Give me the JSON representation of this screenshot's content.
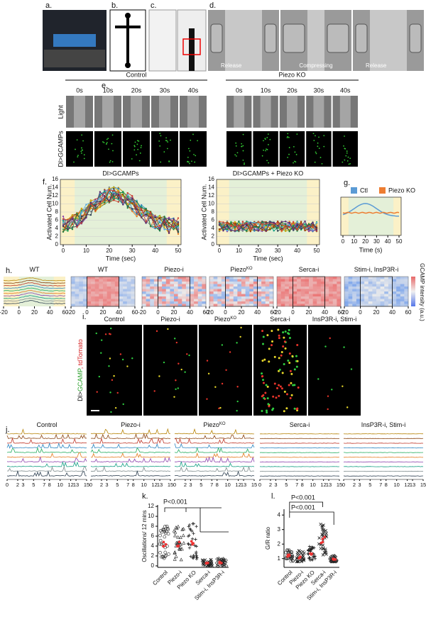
{
  "panels": {
    "a": {
      "label": "a."
    },
    "b": {
      "label": "b."
    },
    "c": {
      "label": "c."
    },
    "d": {
      "label": "d.",
      "frames": [
        "Release",
        "Compressing",
        "Release"
      ]
    },
    "e": {
      "label": "e.",
      "groups": [
        "Control",
        "Piezo KO"
      ],
      "times": [
        "0s",
        "10s",
        "20s",
        "30s",
        "40s"
      ],
      "rows": [
        "Light",
        "Dl>GCAMPs"
      ]
    },
    "f": {
      "label": "f.",
      "charts": [
        {
          "title": "Dl>GCAMPs",
          "ylabel": "Activated Cell Num.",
          "xlabel": "Time (sec)"
        },
        {
          "title": "Dl>GCAMPs + Piezo KO",
          "ylabel": "Activated Cell Num.",
          "xlabel": "Time (sec)"
        }
      ],
      "yticks": [
        0,
        2,
        4,
        6,
        8,
        10,
        12,
        14,
        16
      ],
      "xticks": [
        0,
        10,
        20,
        30,
        40,
        50
      ]
    },
    "g": {
      "label": "g.",
      "legend": [
        "Ctl",
        "Piezo KO"
      ],
      "xticks": [
        0,
        10,
        20,
        30,
        40,
        50
      ],
      "xlabel": "Time (s)"
    },
    "h": {
      "label": "h.",
      "titles": [
        [
          "WT"
        ],
        [
          "WT"
        ],
        [
          "Piezo-i"
        ],
        [
          "Piezo",
          "KO"
        ],
        [
          "Serca-i"
        ],
        [
          "Stim-i, InsP3R-i"
        ]
      ],
      "xticks": [
        -20,
        0,
        20,
        40,
        60
      ],
      "colorbar_label": "GCAMP intensity (a.u.)"
    },
    "i": {
      "label": "i.",
      "titles": [
        [
          "Control"
        ],
        [
          "Piezo-i"
        ],
        [
          "Piezo",
          "KO"
        ],
        [
          "Serca-i"
        ],
        [
          "InsP3R-i, Stim-i"
        ]
      ],
      "side_label": [
        "Dl>",
        "GCAMP",
        ", tdTomato"
      ]
    },
    "j": {
      "label": "j.",
      "titles": [
        [
          "Control"
        ],
        [
          "Piezo-i"
        ],
        [
          "Piezo",
          "KO"
        ],
        [
          "Serca-i"
        ],
        [
          "InsP3R-i, Stim-i"
        ]
      ],
      "xticks": [
        0,
        2,
        3,
        5,
        7,
        8,
        10,
        12,
        13,
        15
      ]
    },
    "k": {
      "label": "k.",
      "annotation": "P<0.001",
      "ylabel": "Oscillations/ 12 mins",
      "yticks": [
        0,
        2,
        4,
        6,
        8,
        10,
        12
      ],
      "categories": [
        "Control",
        "Piezo-i",
        "Piezo KO",
        "Serca-i",
        "Stim-i, InsP3R-i"
      ]
    },
    "l": {
      "label": "l.",
      "annotations": [
        "P<0.001",
        "P<0.001"
      ],
      "ylabel": "G/R ratio",
      "yticks": [
        1,
        2,
        3,
        4
      ],
      "categories": [
        "Control",
        "Piezo-i",
        "Piezo KO",
        "Serca-i",
        "Stim-i, InsP3R-i"
      ]
    }
  }
}
